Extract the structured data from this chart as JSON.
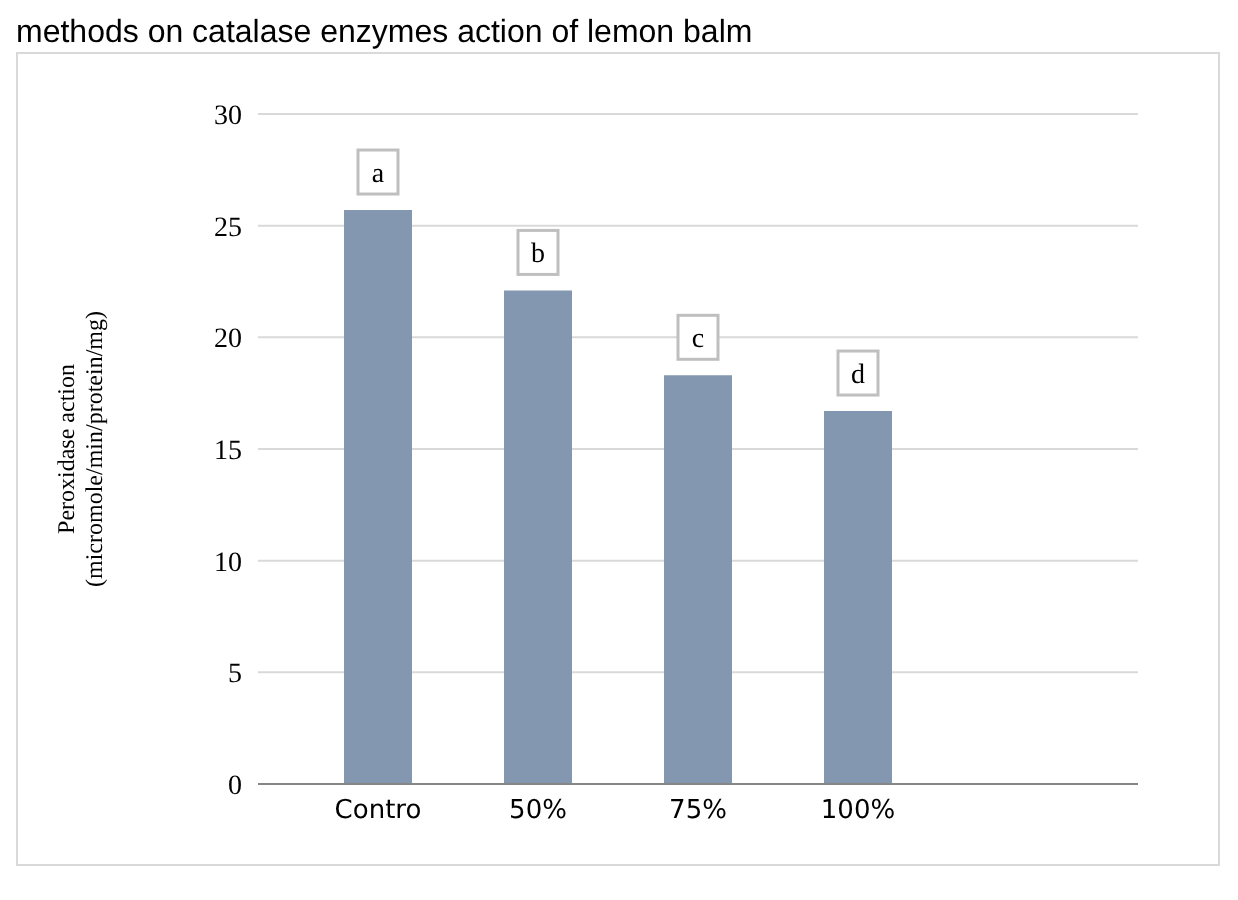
{
  "chart_data": {
    "type": "bar",
    "title": "methods on catalase enzymes action of lemon balm",
    "ylabel": "Peroxidase action\n(micromole/min/protein/mg)",
    "categories": [
      "Contro",
      "50%",
      "75%",
      "100%"
    ],
    "values": [
      25.7,
      22.1,
      18.3,
      16.7
    ],
    "color": "#8497b0",
    "ylim": [
      0,
      30
    ],
    "yticks": [
      0,
      5,
      10,
      15,
      20,
      25,
      30
    ],
    "grid": "y",
    "annotations": [
      {
        "text": "a",
        "x": "Contro",
        "y": 25.7
      },
      {
        "text": "b",
        "x": "50%",
        "y": 22.1
      },
      {
        "text": "c",
        "x": "75%",
        "y": 18.3
      },
      {
        "text": "d",
        "x": "100%",
        "y": 16.7
      }
    ]
  }
}
